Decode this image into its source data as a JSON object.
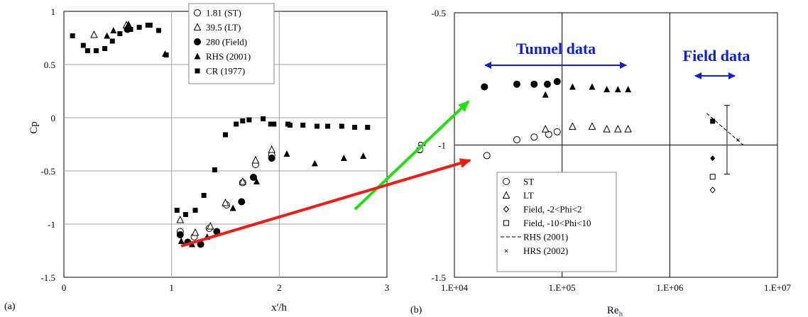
{
  "chart_data": [
    {
      "panel_label": "(a)",
      "type": "scatter",
      "xlabel": "x'/h",
      "ylabel": "Cp",
      "xlim": [
        0,
        3
      ],
      "ylim": [
        -1.5,
        1
      ],
      "xticks": [
        "0",
        "1",
        "2",
        "3"
      ],
      "yticks": [
        "1",
        "0.5",
        "0",
        "-0.5",
        "-1",
        "-1.5"
      ],
      "grid": "major",
      "legend_position": "top-center",
      "series": [
        {
          "name": "1.81 (ST)",
          "marker": "circle-open",
          "points": [
            [
              1.08,
              -1.07
            ],
            [
              1.21,
              -1.12
            ],
            [
              1.35,
              -1.04
            ],
            [
              1.51,
              -0.82
            ],
            [
              1.66,
              -0.61
            ],
            [
              1.78,
              -0.44
            ],
            [
              1.93,
              -0.35
            ]
          ]
        },
        {
          "name": "39.5 (LT)",
          "marker": "triangle-open",
          "points": [
            [
              1.08,
              -0.96
            ],
            [
              1.22,
              -1.08
            ],
            [
              1.36,
              -1.02
            ],
            [
              1.5,
              -0.8
            ],
            [
              1.66,
              -0.6
            ],
            [
              1.78,
              -0.4
            ],
            [
              1.93,
              -0.3
            ],
            [
              0.28,
              0.78
            ],
            [
              0.58,
              0.87
            ]
          ]
        },
        {
          "name": "280 (Field)",
          "marker": "circle-filled",
          "points": [
            [
              1.08,
              -1.1
            ],
            [
              1.15,
              -1.17
            ],
            [
              1.27,
              -1.19
            ],
            [
              1.42,
              -1.07
            ],
            [
              1.65,
              -0.79
            ],
            [
              1.76,
              -0.56
            ],
            [
              1.93,
              -0.38
            ],
            [
              0.59,
              0.83
            ]
          ]
        },
        {
          "name": "RHS (2001)",
          "marker": "triangle-filled",
          "points": [
            [
              1.09,
              -1.16
            ],
            [
              1.19,
              -1.19
            ],
            [
              1.33,
              -1.12
            ],
            [
              1.57,
              -0.85
            ],
            [
              1.79,
              -0.6
            ],
            [
              2.07,
              -0.34
            ],
            [
              2.33,
              -0.43
            ],
            [
              2.6,
              -0.38
            ],
            [
              2.78,
              -0.36
            ],
            [
              0.4,
              0.77
            ],
            [
              0.46,
              0.82
            ],
            [
              0.6,
              0.88
            ],
            [
              0.94,
              0.6
            ]
          ]
        },
        {
          "name": "CR (1977)",
          "marker": "square-filled",
          "points": [
            [
              0.08,
              0.77
            ],
            [
              0.18,
              0.68
            ],
            [
              0.22,
              0.63
            ],
            [
              0.3,
              0.63
            ],
            [
              0.38,
              0.65
            ],
            [
              0.45,
              0.72
            ],
            [
              0.52,
              0.79
            ],
            [
              0.62,
              0.83
            ],
            [
              0.7,
              0.85
            ],
            [
              0.78,
              0.87
            ],
            [
              0.8,
              0.87
            ],
            [
              0.88,
              0.82
            ],
            [
              0.95,
              0.59
            ],
            [
              1.05,
              -0.87
            ],
            [
              1.13,
              -0.91
            ],
            [
              1.22,
              -0.87
            ],
            [
              1.3,
              -0.73
            ],
            [
              1.4,
              -0.49
            ],
            [
              1.5,
              -0.16
            ],
            [
              1.6,
              -0.06
            ],
            [
              1.66,
              -0.03
            ],
            [
              1.72,
              -0.02
            ],
            [
              1.85,
              -0.01
            ],
            [
              1.92,
              -0.06
            ],
            [
              1.95,
              -0.06
            ],
            [
              2.08,
              -0.06
            ],
            [
              2.1,
              -0.07
            ],
            [
              2.22,
              -0.07
            ],
            [
              2.35,
              -0.08
            ],
            [
              2.45,
              -0.08
            ],
            [
              2.58,
              -0.08
            ],
            [
              2.7,
              -0.09
            ],
            [
              2.82,
              -0.09
            ]
          ]
        }
      ]
    },
    {
      "panel_label": "(b)",
      "type": "scatter",
      "xlabel": "Re",
      "xlabel_subscript": "h",
      "ylabel": "Cp",
      "x_scale": "log",
      "xlim": [
        10000,
        10000000
      ],
      "ylim": [
        -1.5,
        -0.5
      ],
      "xticks": [
        "1.E+04",
        "1.E+05",
        "1.E+06",
        "1.E+07"
      ],
      "yticks": [
        "-0.5",
        "-1",
        "-1.5"
      ],
      "grid": "major",
      "legend_position": "bottom-center",
      "annotations": [
        "Tunnel data",
        "Field data"
      ],
      "series": [
        {
          "name": "ST",
          "marker": "circle-open",
          "points": [
            [
              20000,
              -1.04
            ],
            [
              38000,
              -0.98
            ],
            [
              55000,
              -0.97
            ],
            [
              75000,
              -0.96
            ],
            [
              90000,
              -0.95
            ]
          ]
        },
        {
          "name": "LT",
          "marker": "triangle-open",
          "points": [
            [
              70000,
              -0.94
            ],
            [
              125000,
              -0.93
            ],
            [
              190000,
              -0.93
            ],
            [
              260000,
              -0.94
            ],
            [
              330000,
              -0.94
            ],
            [
              410000,
              -0.94
            ]
          ]
        },
        {
          "name": "Field, -2<Phi<2",
          "marker": "diamond-open",
          "points": [
            [
              2500000,
              -1.17
            ]
          ]
        },
        {
          "name": "Field, -10<Phi<10",
          "marker": "square-open",
          "points": [
            [
              2500000,
              -1.12
            ]
          ]
        },
        {
          "name": "RHS (2001)",
          "marker": "dashed-line",
          "points": [
            [
              2200000,
              -0.88
            ],
            [
              4800000,
              -1.0
            ]
          ]
        },
        {
          "name": "HRS (2002)",
          "marker": "asterisk",
          "points": [
            [
              4300000,
              -0.98
            ]
          ]
        },
        {
          "name": "",
          "marker": "circle-filled",
          "points": [
            [
              19000,
              -0.78
            ],
            [
              38000,
              -0.77
            ],
            [
              55000,
              -0.77
            ],
            [
              73000,
              -0.77
            ],
            [
              90000,
              -0.76
            ]
          ]
        },
        {
          "name": "",
          "marker": "triangle-filled",
          "points": [
            [
              70000,
              -0.81
            ],
            [
              125000,
              -0.78
            ],
            [
              190000,
              -0.78
            ],
            [
              260000,
              -0.79
            ],
            [
              330000,
              -0.79
            ],
            [
              410000,
              -0.79
            ]
          ]
        },
        {
          "name": "",
          "marker": "diamond-filled",
          "points": [
            [
              2500000,
              -1.05
            ]
          ]
        },
        {
          "name": "",
          "marker": "square-filled",
          "points": [
            [
              2500000,
              -0.91
            ]
          ]
        },
        {
          "name": "",
          "marker": "error-bar",
          "points": [
            [
              3400000,
              -0.85
            ],
            [
              3400000,
              -1.11
            ]
          ]
        }
      ]
    }
  ]
}
